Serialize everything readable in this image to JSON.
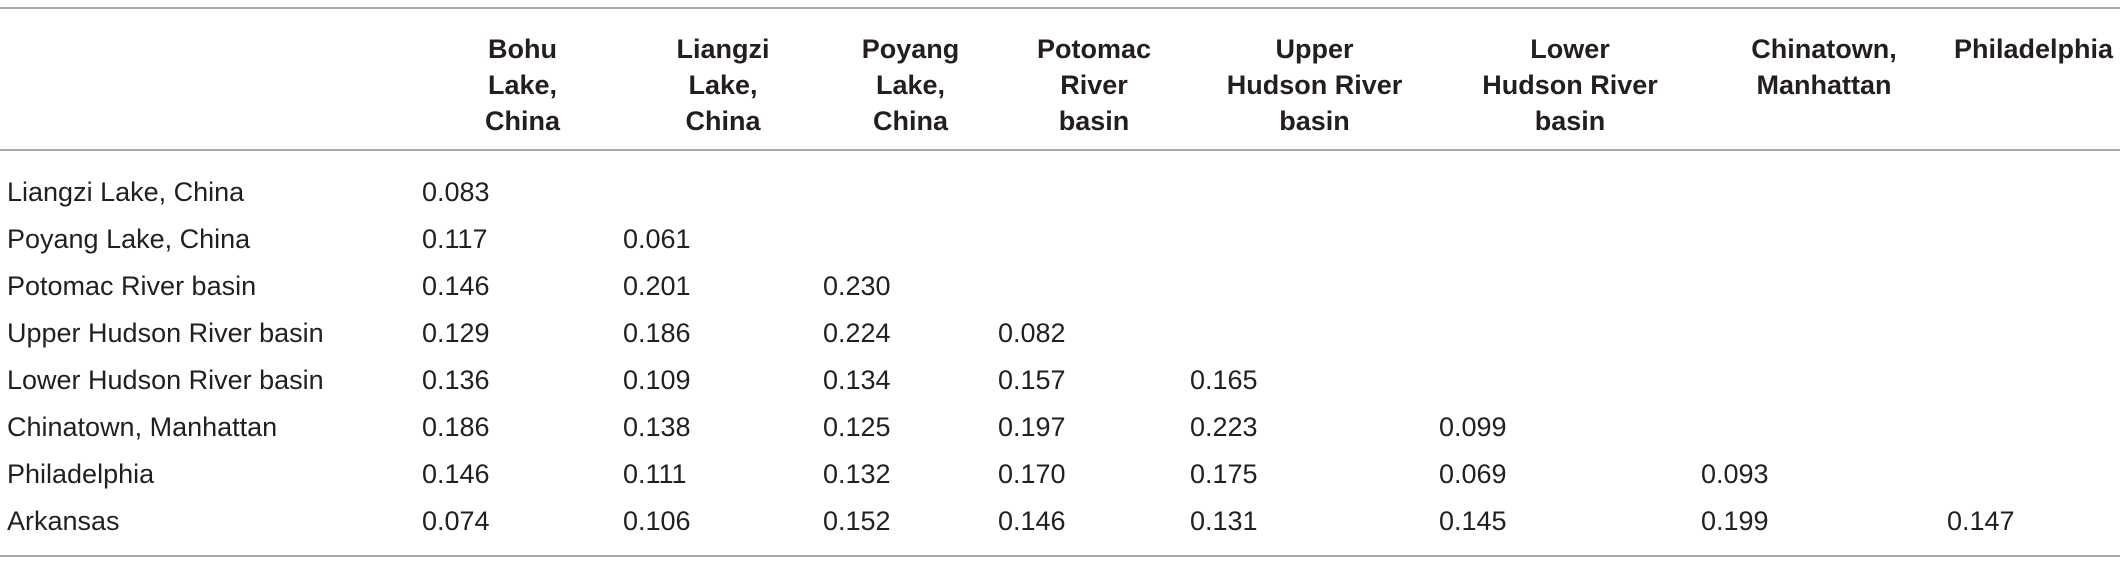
{
  "table": {
    "columns": [
      "Bohu\nLake,\nChina",
      "Liangzi\nLake,\nChina",
      "Poyang\nLake,\nChina",
      "Potomac\nRiver\nbasin",
      "Upper\nHudson River\nbasin",
      "Lower\nHudson River\nbasin",
      "Chinatown,\nManhattan",
      "Philadelphia"
    ],
    "rows": [
      {
        "label": "Liangzi Lake, China",
        "values": [
          "0.083"
        ]
      },
      {
        "label": "Poyang Lake, China",
        "values": [
          "0.117",
          "0.061"
        ]
      },
      {
        "label": "Potomac River basin",
        "values": [
          "0.146",
          "0.201",
          "0.230"
        ]
      },
      {
        "label": "Upper Hudson River basin",
        "values": [
          "0.129",
          "0.186",
          "0.224",
          "0.082"
        ]
      },
      {
        "label": "Lower Hudson River basin",
        "values": [
          "0.136",
          "0.109",
          "0.134",
          "0.157",
          "0.165"
        ]
      },
      {
        "label": "Chinatown, Manhattan",
        "values": [
          "0.186",
          "0.138",
          "0.125",
          "0.197",
          "0.223",
          "0.099"
        ]
      },
      {
        "label": "Philadelphia",
        "values": [
          "0.146",
          "0.111",
          "0.132",
          "0.170",
          "0.175",
          "0.069",
          "0.093"
        ]
      },
      {
        "label": "Arkansas",
        "values": [
          "0.074",
          "0.106",
          "0.152",
          "0.146",
          "0.131",
          "0.145",
          "0.199",
          "0.147"
        ]
      }
    ]
  }
}
